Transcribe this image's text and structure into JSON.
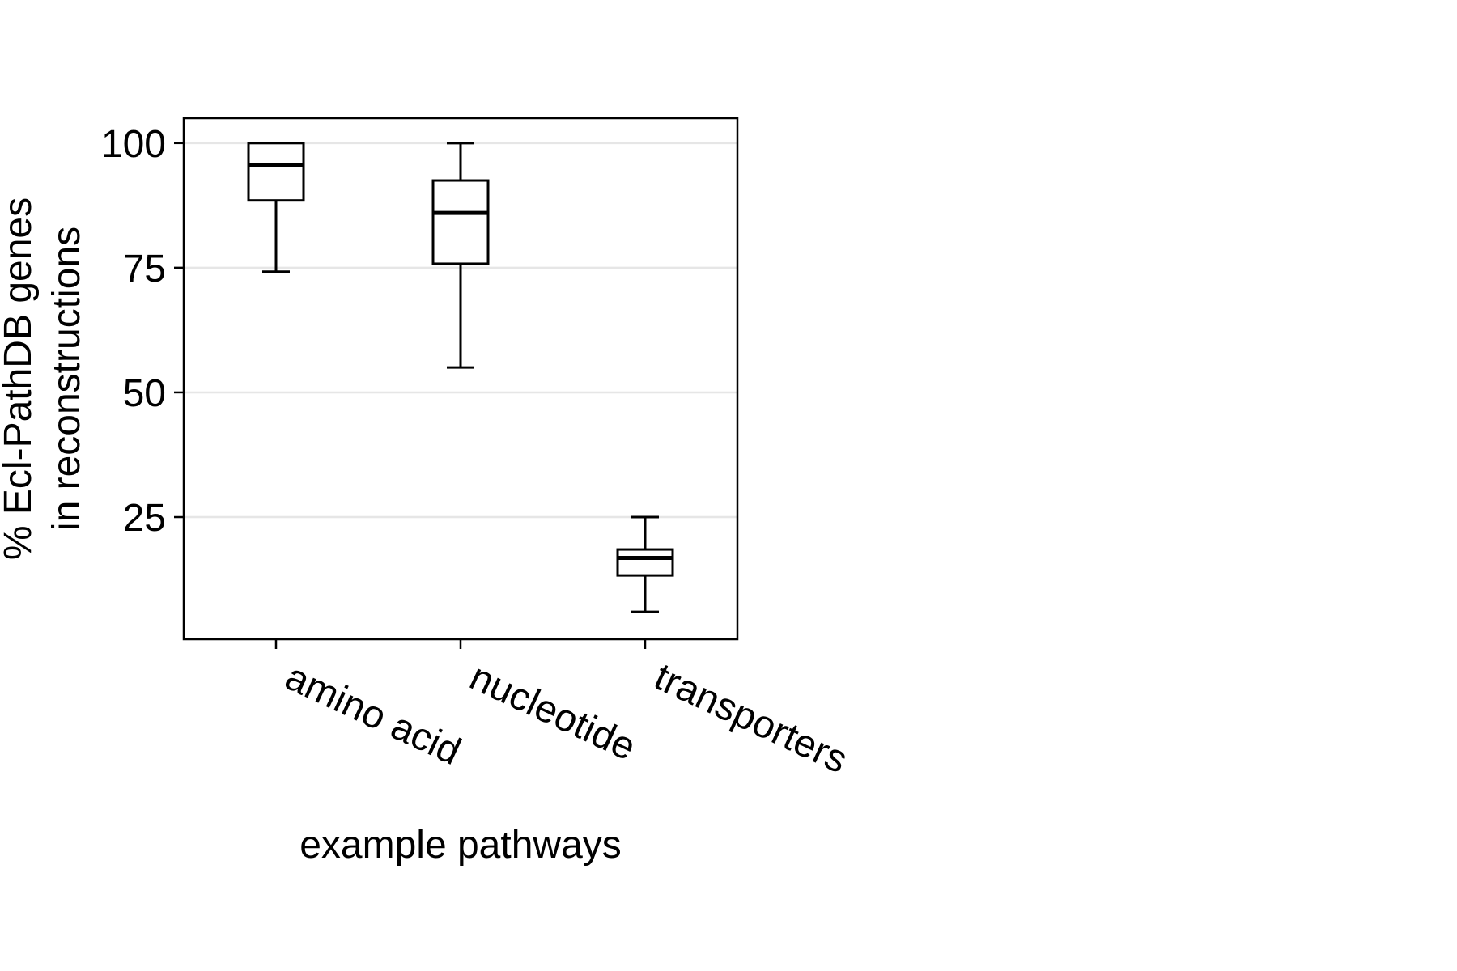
{
  "chart_data": {
    "type": "box",
    "categories": [
      "amino acid",
      "nucleotide",
      "transporters"
    ],
    "boxes": [
      {
        "category": "amino acid",
        "whisker_low": 74.2,
        "q1": 88.5,
        "median": 95.5,
        "q3": 100.0,
        "whisker_high": 100.0
      },
      {
        "category": "nucleotide",
        "whisker_low": 55.0,
        "q1": 75.8,
        "median": 86.0,
        "q3": 92.5,
        "whisker_high": 100.0
      },
      {
        "category": "transporters",
        "whisker_low": 6.0,
        "q1": 13.3,
        "median": 16.8,
        "q3": 18.5,
        "whisker_high": 25.0
      }
    ],
    "yticks": [
      25,
      50,
      75,
      100
    ],
    "ylim": [
      0.5,
      105
    ],
    "xlabel": "example pathways",
    "ylabel_lines": [
      "% Ecl-PathDB genes",
      "in reconstructions"
    ],
    "grid": "horizontal",
    "colors": {
      "box": "#000000",
      "grid": "#e6e6e6",
      "background": "#ffffff"
    }
  }
}
